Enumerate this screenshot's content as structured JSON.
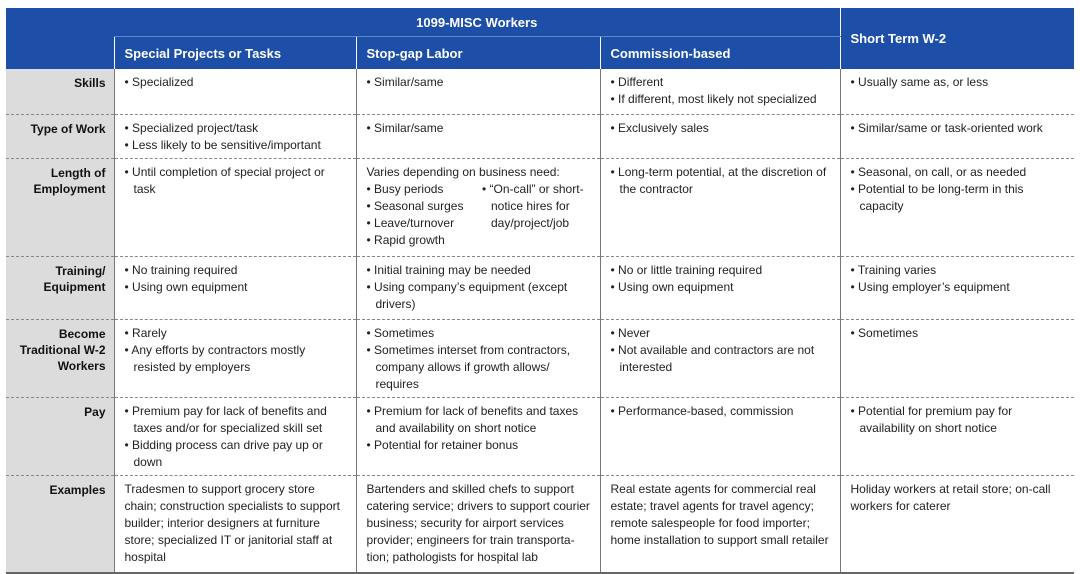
{
  "header": {
    "group_title": "1099-MISC Workers",
    "columns": [
      "Special Projects or Tasks",
      "Stop-gap Labor",
      "Commission-based",
      "Short Term W-2"
    ]
  },
  "rows": [
    {
      "label": "Skills",
      "cells": [
        [
          "Specialized"
        ],
        [
          "Similar/same"
        ],
        [
          "Different",
          "If different, most likely not specialized"
        ],
        [
          "Usually same as, or less"
        ]
      ]
    },
    {
      "label": "Type of Work",
      "cells": [
        [
          "Specialized project/task",
          "Less likely to be sensitive/important"
        ],
        [
          "Similar/same"
        ],
        [
          "Exclusively sales"
        ],
        [
          "Similar/same or task-oriented work"
        ]
      ]
    },
    {
      "label": "Length of Employment",
      "col1": [
        "Until completion of special project or task"
      ],
      "col2_intro": "Varies depending on business need:",
      "col2_left": [
        "Busy periods",
        "Seasonal surges",
        "Leave/turnover",
        "Rapid growth"
      ],
      "col2_right": [
        "“On-call” or short-notice hires for day/project/job"
      ],
      "col3": [
        "Long-term potential, at the discretion of the contractor"
      ],
      "col4": [
        "Seasonal, on call, or as needed",
        "Potential to be long-term in this capacity"
      ]
    },
    {
      "label": "Training/ Equipment",
      "cells": [
        [
          "No training required",
          "Using own equipment"
        ],
        [
          "Initial training may be needed",
          "Using company’s equipment (except drivers)"
        ],
        [
          "No or little training required",
          "Using own equipment"
        ],
        [
          "Training varies",
          "Using employer’s equipment"
        ]
      ]
    },
    {
      "label": "Become Traditional W-2 Workers",
      "cells": [
        [
          "Rarely",
          "Any efforts by contractors mostly resisted by employers"
        ],
        [
          "Sometimes",
          "Sometimes interset from contractors, company allows if growth allows/ requires"
        ],
        [
          "Never",
          "Not available and contractors are not interested"
        ],
        [
          "Sometimes"
        ]
      ]
    },
    {
      "label": "Pay",
      "cells": [
        [
          "Premium pay for lack of benefits and taxes and/or for specialized skill set",
          "Bidding process can drive pay up or down"
        ],
        [
          "Premium for lack of benefits and taxes and availability on short notice",
          "Potential for retainer bonus"
        ],
        [
          "Performance-based, commission"
        ],
        [
          "Potential for premium pay for availability on short notice"
        ]
      ]
    },
    {
      "label": "Examples",
      "text": [
        "Tradesmen to support grocery store chain; construction specialists to support builder; interior designers at furniture store; specialized IT or janitorial staff at hospital",
        "Bartenders and skilled chefs to support catering service; drivers to support courier business; security for airport services provider; engineers for train transporta-tion; pathologists for hospital lab",
        "Real estate agents for commercial real estate; travel agents for travel agency; remote salespeople for food importer; home installation to support small retailer",
        "Holiday workers at retail store; on-call workers for caterer"
      ]
    }
  ]
}
